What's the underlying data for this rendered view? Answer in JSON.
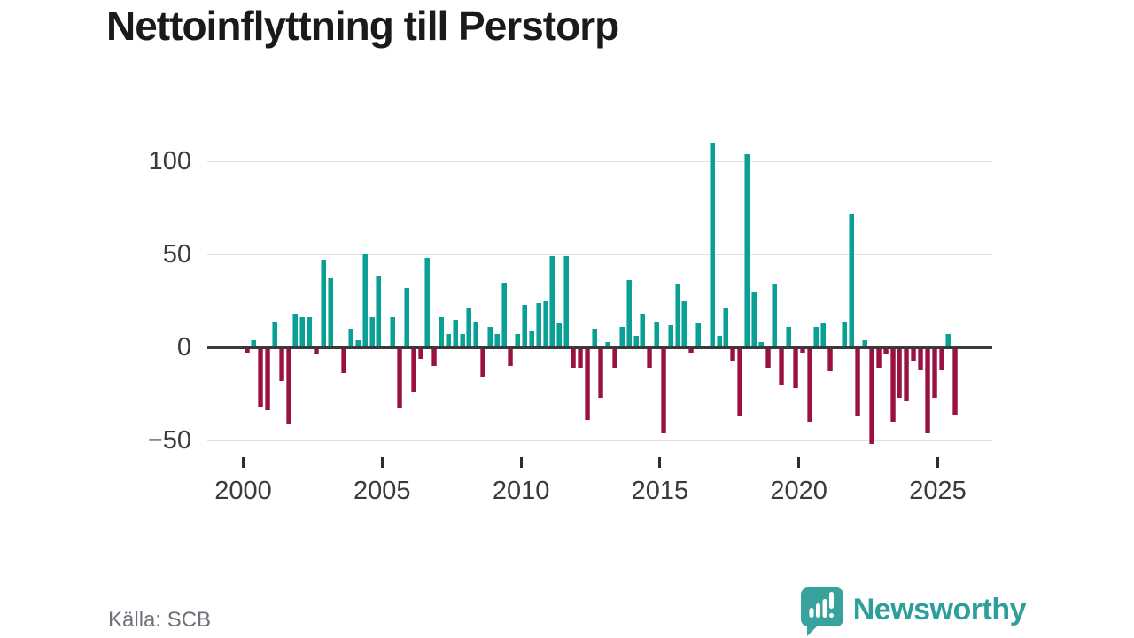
{
  "header": {
    "title": "Nettoinflyttning till Perstorp"
  },
  "footer": {
    "source_label": "Källa: SCB",
    "logo_text": "Newsworthy"
  },
  "colors": {
    "positive_bar": "#0aa096",
    "negative_bar": "#9a1042",
    "gridline": "#e0e0e0",
    "zero_line": "#3a3a3a",
    "axis_text": "#3a3a3a",
    "logo_teal": "#38a39d"
  },
  "chart_data": {
    "type": "bar",
    "title": "Nettoinflyttning till Perstorp",
    "xlabel": "",
    "ylabel": "",
    "frequency": "quarterly",
    "period": "2000Q1–2025Q3",
    "start_year": 2000,
    "start_quarter": 1,
    "values": [
      -3,
      4,
      -32,
      -34,
      14,
      -18,
      -41,
      18,
      16,
      16,
      -4,
      47,
      37,
      0,
      -14,
      10,
      4,
      50,
      16,
      38,
      0,
      16,
      -33,
      32,
      -24,
      -6,
      48,
      -10,
      16,
      7,
      15,
      7,
      21,
      14,
      -16,
      11,
      7,
      35,
      -10,
      7,
      23,
      9,
      24,
      25,
      49,
      13,
      49,
      -11,
      -11,
      -39,
      10,
      -27,
      3,
      -11,
      11,
      36,
      6,
      18,
      -11,
      14,
      -46,
      12,
      34,
      25,
      -3,
      13,
      0,
      110,
      6,
      21,
      -7,
      -37,
      104,
      30,
      3,
      -11,
      34,
      -20,
      11,
      -22,
      -3,
      -40,
      11,
      13,
      -13,
      0,
      14,
      72,
      -37,
      4,
      -52,
      -11,
      -4,
      -40,
      -27,
      -29,
      -7,
      -12,
      -46,
      -27,
      -12,
      7,
      -36
    ],
    "y_ticks": [
      {
        "label": "100",
        "value": 100
      },
      {
        "label": "50",
        "value": 50
      },
      {
        "label": "0",
        "value": 0
      },
      {
        "label": "−50",
        "value": -50
      }
    ],
    "x_ticks": [
      {
        "label": "2000"
      },
      {
        "label": "2005"
      },
      {
        "label": "2010"
      },
      {
        "label": "2015"
      },
      {
        "label": "2020"
      },
      {
        "label": "2025"
      }
    ],
    "ylim": [
      -60,
      115
    ],
    "grid": true,
    "legend": "none",
    "positive_color": "#0aa096",
    "negative_color": "#9a1042"
  }
}
